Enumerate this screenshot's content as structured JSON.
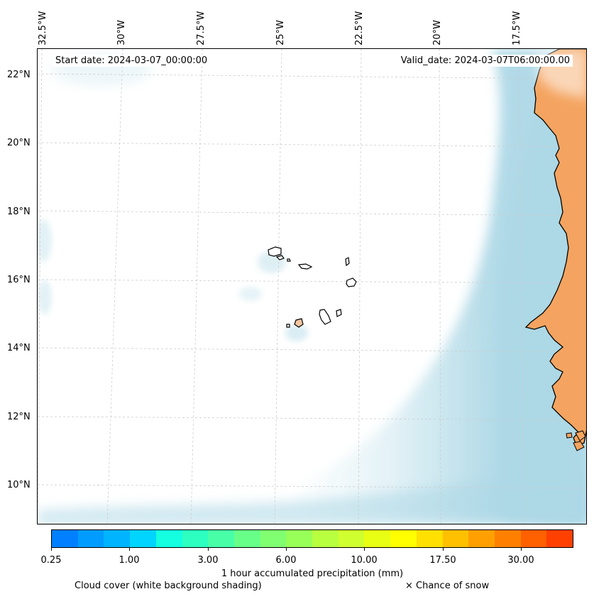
{
  "map": {
    "lon_labels": [
      "32.5°W",
      "30°W",
      "27.5°W",
      "25°W",
      "22.5°W",
      "20°W",
      "17.5°W"
    ],
    "lat_labels": [
      "22°N",
      "20°N",
      "18°N",
      "16°N",
      "14°N",
      "12°N",
      "10°N"
    ],
    "start_date": "Start date: 2024-03-07_00:00:00",
    "valid_date": "Valid_date: 2024-03-07T06:00:00.00"
  },
  "colors": {
    "land": "#f4a460",
    "cloud": "#add8e6",
    "ocean": "#ffffff",
    "coast": "#000000",
    "grid": "#cccccc"
  },
  "colorbar": {
    "colors": [
      "#0080ff",
      "#009cff",
      "#00b4ff",
      "#00d4ff",
      "#14ffe0",
      "#2cffc0",
      "#48ffa8",
      "#68ff88",
      "#80ff70",
      "#98ff58",
      "#b8ff40",
      "#d0ff30",
      "#e8ff14",
      "#ffff00",
      "#ffe000",
      "#ffc000",
      "#ffa000",
      "#ff8000",
      "#ff6000",
      "#ff4000"
    ],
    "tick_labels": [
      "0.25",
      "1.00",
      "3.00",
      "6.00",
      "10.00",
      "17.50",
      "30.00"
    ],
    "title": "1 hour accumulated precipitation (mm)"
  },
  "legend": {
    "cloud_cover": "Cloud cover (white background shading)",
    "snow": "× Chance of snow"
  }
}
